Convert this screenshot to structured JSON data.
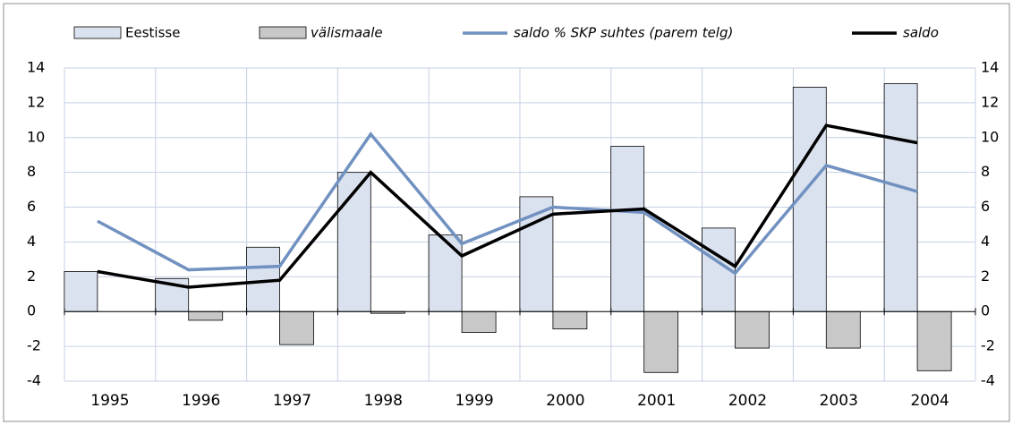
{
  "chart_data": {
    "type": "bar-line",
    "categories": [
      "1995",
      "1996",
      "1997",
      "1998",
      "1999",
      "2000",
      "2001",
      "2002",
      "2003",
      "2004"
    ],
    "series": [
      {
        "name": "Eestisse",
        "type": "bar",
        "color": "#dbe2ef",
        "values": [
          2.3,
          1.9,
          3.7,
          8.0,
          4.4,
          6.6,
          9.5,
          4.8,
          12.9,
          13.1
        ]
      },
      {
        "name": "välismaale",
        "type": "bar",
        "color": "#c8c8c8",
        "values": [
          0,
          -0.5,
          -1.9,
          -0.1,
          -1.2,
          -1.0,
          -3.5,
          -2.1,
          -2.1,
          -3.4
        ]
      },
      {
        "name": "saldo % SKP suhtes (parem telg)",
        "type": "line",
        "axis": "y2",
        "color": "#7191c0",
        "values": [
          5.2,
          2.4,
          2.6,
          10.2,
          3.9,
          6.0,
          5.7,
          2.2,
          8.4,
          6.9
        ]
      },
      {
        "name": "saldo",
        "type": "line",
        "color": "#000000",
        "values": [
          2.3,
          1.4,
          1.8,
          8.0,
          3.2,
          5.6,
          5.9,
          2.6,
          10.7,
          9.7
        ]
      }
    ],
    "ylim": [
      -4,
      14
    ],
    "yticks": [
      -4,
      -2,
      0,
      2,
      4,
      6,
      8,
      10,
      12,
      14
    ],
    "y2lim": [
      -4,
      14
    ],
    "y2ticks": [
      -4,
      -2,
      0,
      2,
      4,
      6,
      8,
      10,
      12,
      14
    ],
    "grid": true,
    "legend": "top"
  }
}
